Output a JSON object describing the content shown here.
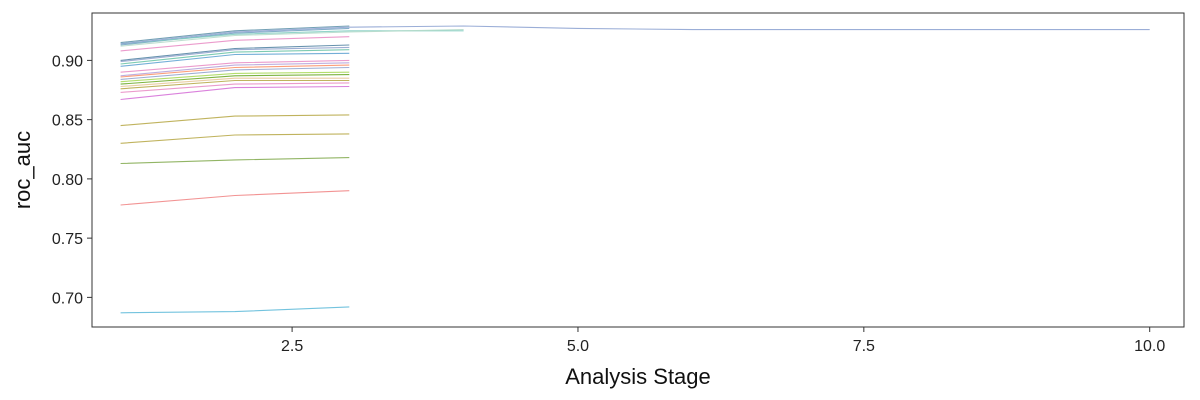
{
  "chart_data": {
    "type": "line",
    "title": "",
    "xlabel": "Analysis Stage",
    "ylabel": "roc_auc",
    "xlim": [
      0.75,
      10.3
    ],
    "ylim": [
      0.675,
      0.94
    ],
    "xticks": [
      2.5,
      5.0,
      7.5,
      10.0
    ],
    "xtick_labels": [
      "2.5",
      "5.0",
      "7.5",
      "10.0"
    ],
    "yticks": [
      0.7,
      0.75,
      0.8,
      0.85,
      0.9
    ],
    "ytick_labels": [
      "0.70",
      "0.75",
      "0.80",
      "0.85",
      "0.90"
    ],
    "grid": false,
    "legend": "none",
    "series": [
      {
        "color": "#5b8fa8",
        "x": [
          1,
          2,
          3
        ],
        "values": [
          0.915,
          0.925,
          0.929
        ]
      },
      {
        "color": "#6fa0c0",
        "x": [
          1,
          2,
          3
        ],
        "values": [
          0.913,
          0.923,
          0.927
        ]
      },
      {
        "color": "#e78ac3",
        "x": [
          1,
          2,
          3
        ],
        "values": [
          0.908,
          0.917,
          0.92
        ]
      },
      {
        "color": "#4c7fa0",
        "x": [
          1,
          2,
          3
        ],
        "values": [
          0.9,
          0.91,
          0.913
        ]
      },
      {
        "color": "#8da0cb",
        "x": [
          1,
          2,
          3
        ],
        "values": [
          0.899,
          0.909,
          0.911
        ]
      },
      {
        "color": "#66c2a5",
        "x": [
          1,
          2,
          3
        ],
        "values": [
          0.897,
          0.907,
          0.909
        ]
      },
      {
        "color": "#5aa0d0",
        "x": [
          1,
          2,
          3
        ],
        "values": [
          0.895,
          0.905,
          0.906
        ]
      },
      {
        "color": "#e78ac3",
        "x": [
          1,
          2,
          3
        ],
        "values": [
          0.89,
          0.898,
          0.9
        ]
      },
      {
        "color": "#b3a0d8",
        "x": [
          1,
          2,
          3
        ],
        "values": [
          0.887,
          0.896,
          0.898
        ]
      },
      {
        "color": "#fc8d62",
        "x": [
          1,
          2,
          3
        ],
        "values": [
          0.886,
          0.894,
          0.896
        ]
      },
      {
        "color": "#8da0cb",
        "x": [
          1,
          2,
          3
        ],
        "values": [
          0.884,
          0.892,
          0.894
        ]
      },
      {
        "color": "#a6d854",
        "x": [
          1,
          2,
          3
        ],
        "values": [
          0.882,
          0.889,
          0.89
        ]
      },
      {
        "color": "#66a61e",
        "x": [
          1,
          2,
          3
        ],
        "values": [
          0.88,
          0.887,
          0.888
        ]
      },
      {
        "color": "#e5c494",
        "x": [
          1,
          2,
          3
        ],
        "values": [
          0.878,
          0.885,
          0.885
        ]
      },
      {
        "color": "#b5a642",
        "x": [
          1,
          2,
          3
        ],
        "values": [
          0.876,
          0.883,
          0.883
        ]
      },
      {
        "color": "#e78ac3",
        "x": [
          1,
          2,
          3
        ],
        "values": [
          0.873,
          0.88,
          0.881
        ]
      },
      {
        "color": "#d46bd6",
        "x": [
          1,
          2,
          3
        ],
        "values": [
          0.867,
          0.877,
          0.878
        ]
      },
      {
        "color": "#b5a642",
        "x": [
          1,
          2,
          3
        ],
        "values": [
          0.845,
          0.853,
          0.854
        ]
      },
      {
        "color": "#b5a642",
        "x": [
          1,
          2,
          3
        ],
        "values": [
          0.83,
          0.837,
          0.838
        ]
      },
      {
        "color": "#7fa84a",
        "x": [
          1,
          2,
          3
        ],
        "values": [
          0.813,
          0.816,
          0.818
        ]
      },
      {
        "color": "#f08080",
        "x": [
          1,
          2,
          3
        ],
        "values": [
          0.778,
          0.786,
          0.79
        ]
      },
      {
        "color": "#5bb8d8",
        "x": [
          1,
          2,
          3
        ],
        "values": [
          0.687,
          0.688,
          0.692
        ]
      },
      {
        "color": "#80cdc1",
        "x": [
          1,
          2,
          3,
          4
        ],
        "values": [
          0.914,
          0.922,
          0.925,
          0.925
        ]
      },
      {
        "color": "#b3d9c8",
        "x": [
          1,
          2,
          3,
          4
        ],
        "values": [
          0.912,
          0.921,
          0.924,
          0.926
        ]
      },
      {
        "color": "#8aa0d0",
        "x": [
          1,
          2,
          3,
          4,
          5,
          6,
          7,
          8,
          9,
          10
        ],
        "values": [
          0.914,
          0.924,
          0.928,
          0.929,
          0.927,
          0.926,
          0.926,
          0.926,
          0.926,
          0.926
        ]
      }
    ]
  }
}
